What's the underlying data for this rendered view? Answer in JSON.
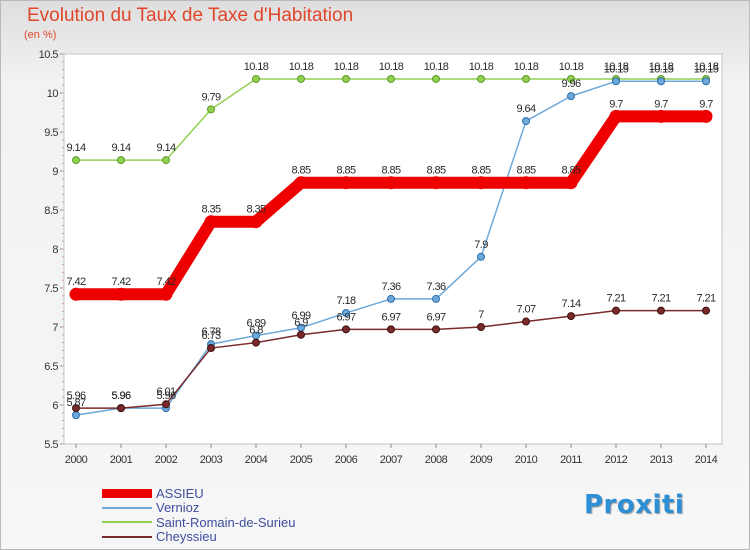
{
  "chart_data": {
    "type": "line",
    "title": "Evolution du Taux de Taxe d'Habitation",
    "subtitle": "(en %)",
    "x": [
      "2000",
      "2001",
      "2002",
      "2003",
      "2004",
      "2005",
      "2006",
      "2007",
      "2008",
      "2009",
      "2010",
      "2011",
      "2012",
      "2013",
      "2014"
    ],
    "yticks": [
      "5.5",
      "6",
      "6.5",
      "7",
      "7.5",
      "8",
      "8.5",
      "9",
      "9.5",
      "10",
      "10.5"
    ],
    "ylim": [
      5.5,
      10.5
    ],
    "grid": false,
    "legend_position": "bottom-left",
    "series": [
      {
        "name": "ASSIEU",
        "color": "#ee0000",
        "values": [
          7.42,
          7.42,
          7.42,
          8.35,
          8.35,
          8.85,
          8.85,
          8.85,
          8.85,
          8.85,
          8.85,
          8.85,
          9.7,
          9.7,
          9.7
        ],
        "labels": [
          "7.42",
          "7.42",
          "7.42",
          "8.35",
          "8.35",
          "8.85",
          "8.85",
          "8.85",
          "8.85",
          "8.85",
          "8.85",
          "8.85",
          "9.7",
          "9.7",
          "9.7"
        ]
      },
      {
        "name": "Vernioz",
        "color": "#6ea8d8",
        "values": [
          5.87,
          5.96,
          5.96,
          6.78,
          6.89,
          6.99,
          7.18,
          7.36,
          7.36,
          7.9,
          9.64,
          9.96,
          10.15,
          10.15,
          10.15
        ],
        "labels": [
          "5.87",
          "5.96",
          "5.96",
          "6.78",
          "6.89",
          "6.99",
          "7.18",
          "7.36",
          "7.36",
          "7.9",
          "9.64",
          "9.96",
          "10.15",
          "10.15",
          "10.15"
        ]
      },
      {
        "name": "Saint-Romain-de-Surieu",
        "color": "#92d050",
        "values": [
          9.14,
          9.14,
          9.14,
          9.79,
          10.18,
          10.18,
          10.18,
          10.18,
          10.18,
          10.18,
          10.18,
          10.18,
          10.18,
          10.18,
          10.18
        ],
        "labels": [
          "9.14",
          "9.14",
          "9.14",
          "9.79",
          "10.18",
          "10.18",
          "10.18",
          "10.18",
          "10.18",
          "10.18",
          "10.18",
          "10.18",
          "10.18",
          "10.18",
          "10.18"
        ]
      },
      {
        "name": "Cheyssieu",
        "color": "#7a2a2a",
        "values": [
          5.96,
          5.96,
          6.01,
          6.73,
          6.8,
          6.9,
          6.97,
          6.97,
          6.97,
          7,
          7.07,
          7.14,
          7.21,
          7.21,
          7.21
        ],
        "labels": [
          "5.96",
          "5.96",
          "6.01",
          "6.73",
          "6.8",
          "6.9",
          "6.97",
          "6.97",
          "6.97",
          "7",
          "7.07",
          "7.14",
          "7.21",
          "7.21",
          "7.21"
        ]
      }
    ]
  },
  "legend": {
    "items": [
      {
        "label": "ASSIEU"
      },
      {
        "label": "Vernioz"
      },
      {
        "label": "Saint-Romain-de-Surieu"
      },
      {
        "label": "Cheyssieu"
      }
    ]
  },
  "logo": {
    "text": "Proxiti"
  }
}
